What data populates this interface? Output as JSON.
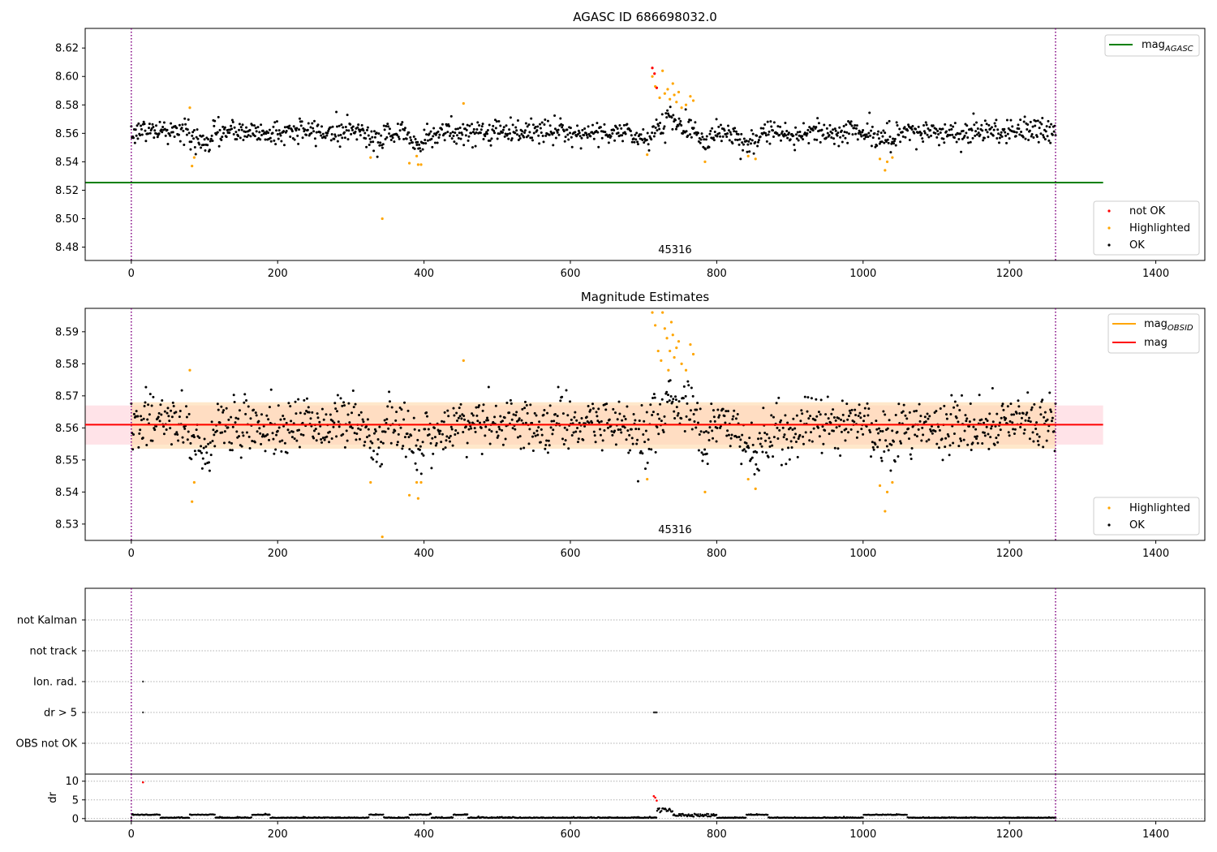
{
  "figure": {
    "title": "AGASC ID 686698032.0",
    "colors": {
      "ok": "#000000",
      "highlighted": "#ffa500",
      "not_ok": "#ff0000",
      "mag_agasc_line": "#008000",
      "mag_obsid_line": "#ffa500",
      "mag_line": "#ff0000",
      "obsid_boundary": "#800080",
      "band_obsid": "#ffd9a8",
      "band_mag": "#ffc0cb"
    }
  },
  "chart_data": [
    {
      "id": "agasc_panel",
      "type": "scatter",
      "title": "AGASC ID 686698032.0",
      "xlim": [
        -63,
        1467
      ],
      "ylim": [
        8.4706,
        8.6338
      ],
      "xticks": [
        0,
        200,
        400,
        600,
        800,
        1000,
        1200,
        1400
      ],
      "yticks": [
        8.48,
        8.5,
        8.52,
        8.54,
        8.56,
        8.58,
        8.6,
        8.62
      ],
      "ytick_labels": [
        "8.48",
        "8.50",
        "8.52",
        "8.54",
        "8.56",
        "8.58",
        "8.60",
        "8.62"
      ],
      "grid": false,
      "obsid_label": {
        "text": "45316",
        "x": 631
      },
      "obsid_boundaries": [
        0,
        1263
      ],
      "reference_lines": [
        {
          "name": "mag$_{AGASC}$",
          "name_main": "mag",
          "name_sub": "AGASC",
          "y": 8.5254,
          "x_range": [
            -63,
            1328
          ]
        }
      ],
      "legend_lines": {
        "position": "top-right",
        "entries": [
          {
            "label": "mag",
            "sub": "AGASC",
            "color_key": "mag_agasc_line"
          }
        ]
      },
      "legend_points": {
        "position": "bottom-right",
        "entries": [
          {
            "label": "not OK",
            "color_key": "not_ok"
          },
          {
            "label": "Highlighted",
            "color_key": "highlighted"
          },
          {
            "label": "OK",
            "color_key": "ok"
          }
        ]
      },
      "series": {
        "ok_count": 1263,
        "ok_x_range": [
          0,
          1263
        ],
        "ok_mean": 8.561,
        "highlighted": [
          {
            "x": 80,
            "y": 8.578
          },
          {
            "x": 83,
            "y": 8.537
          },
          {
            "x": 86,
            "y": 8.543
          },
          {
            "x": 327,
            "y": 8.543
          },
          {
            "x": 343,
            "y": 8.5
          },
          {
            "x": 380,
            "y": 8.539
          },
          {
            "x": 390,
            "y": 8.544
          },
          {
            "x": 392,
            "y": 8.538
          },
          {
            "x": 396,
            "y": 8.538
          },
          {
            "x": 454,
            "y": 8.581
          },
          {
            "x": 705,
            "y": 8.545
          },
          {
            "x": 712,
            "y": 8.6
          },
          {
            "x": 716,
            "y": 8.593
          },
          {
            "x": 722,
            "y": 8.585
          },
          {
            "x": 726,
            "y": 8.604
          },
          {
            "x": 729,
            "y": 8.588
          },
          {
            "x": 733,
            "y": 8.591
          },
          {
            "x": 736,
            "y": 8.584
          },
          {
            "x": 740,
            "y": 8.595
          },
          {
            "x": 742,
            "y": 8.587
          },
          {
            "x": 745,
            "y": 8.582
          },
          {
            "x": 748,
            "y": 8.589
          },
          {
            "x": 752,
            "y": 8.578
          },
          {
            "x": 758,
            "y": 8.58
          },
          {
            "x": 764,
            "y": 8.586
          },
          {
            "x": 768,
            "y": 8.583
          },
          {
            "x": 784,
            "y": 8.54
          },
          {
            "x": 843,
            "y": 8.544
          },
          {
            "x": 853,
            "y": 8.542
          },
          {
            "x": 1023,
            "y": 8.542
          },
          {
            "x": 1030,
            "y": 8.534
          },
          {
            "x": 1033,
            "y": 8.54
          },
          {
            "x": 1040,
            "y": 8.543
          }
        ],
        "not_ok": [
          {
            "x": 712,
            "y": 8.606
          },
          {
            "x": 715,
            "y": 8.602
          },
          {
            "x": 718,
            "y": 8.592
          }
        ]
      }
    },
    {
      "id": "estimates_panel",
      "type": "scatter",
      "title": "Magnitude Estimates",
      "xlim": [
        -63,
        1467
      ],
      "ylim": [
        8.5249,
        8.5973
      ],
      "xticks": [
        0,
        200,
        400,
        600,
        800,
        1000,
        1200,
        1400
      ],
      "yticks": [
        8.53,
        8.54,
        8.55,
        8.56,
        8.57,
        8.58,
        8.59
      ],
      "ytick_labels": [
        "8.53",
        "8.54",
        "8.55",
        "8.56",
        "8.57",
        "8.58",
        "8.59"
      ],
      "grid": false,
      "obsid_label": {
        "text": "45316",
        "x": 631
      },
      "obsid_boundaries": [
        0,
        1263
      ],
      "bands": [
        {
          "name": "mag$_{OBSID}$",
          "y_range": [
            8.5535,
            8.568
          ],
          "x_range": [
            0,
            1263
          ],
          "color_key": "band_obsid"
        },
        {
          "name": "mag",
          "y_range": [
            8.5548,
            8.567
          ],
          "x_range": [
            -63,
            1328
          ],
          "color_key": "band_mag"
        }
      ],
      "reference_lines": [
        {
          "name": "mag$_{OBSID}$",
          "y": 8.561,
          "x_range": [
            0,
            1263
          ],
          "color_key": "mag_obsid_line"
        },
        {
          "name": "mag",
          "y": 8.561,
          "x_range": [
            -63,
            1328
          ],
          "color_key": "mag_line"
        }
      ],
      "legend_lines": {
        "position": "top-right",
        "entries": [
          {
            "label": "mag",
            "sub": "OBSID",
            "color_key": "mag_obsid_line"
          },
          {
            "label": "mag",
            "sub": "",
            "color_key": "mag_line"
          }
        ]
      },
      "legend_points": {
        "position": "bottom-right",
        "entries": [
          {
            "label": "Highlighted",
            "color_key": "highlighted"
          },
          {
            "label": "OK",
            "color_key": "ok"
          }
        ]
      },
      "series": {
        "ok_count": 1263,
        "ok_x_range": [
          0,
          1263
        ],
        "ok_mean": 8.561,
        "highlighted": [
          {
            "x": 80,
            "y": 8.578
          },
          {
            "x": 83,
            "y": 8.537
          },
          {
            "x": 86,
            "y": 8.543
          },
          {
            "x": 327,
            "y": 8.543
          },
          {
            "x": 343,
            "y": 8.526
          },
          {
            "x": 380,
            "y": 8.539
          },
          {
            "x": 390,
            "y": 8.543
          },
          {
            "x": 392,
            "y": 8.538
          },
          {
            "x": 396,
            "y": 8.543
          },
          {
            "x": 454,
            "y": 8.581
          },
          {
            "x": 705,
            "y": 8.544
          },
          {
            "x": 712,
            "y": 8.596
          },
          {
            "x": 716,
            "y": 8.592
          },
          {
            "x": 720,
            "y": 8.584
          },
          {
            "x": 724,
            "y": 8.581
          },
          {
            "x": 726,
            "y": 8.596
          },
          {
            "x": 729,
            "y": 8.591
          },
          {
            "x": 732,
            "y": 8.588
          },
          {
            "x": 734,
            "y": 8.578
          },
          {
            "x": 736,
            "y": 8.584
          },
          {
            "x": 738,
            "y": 8.593
          },
          {
            "x": 740,
            "y": 8.589
          },
          {
            "x": 742,
            "y": 8.582
          },
          {
            "x": 745,
            "y": 8.585
          },
          {
            "x": 748,
            "y": 8.587
          },
          {
            "x": 752,
            "y": 8.58
          },
          {
            "x": 758,
            "y": 8.578
          },
          {
            "x": 764,
            "y": 8.586
          },
          {
            "x": 768,
            "y": 8.583
          },
          {
            "x": 784,
            "y": 8.54
          },
          {
            "x": 843,
            "y": 8.544
          },
          {
            "x": 853,
            "y": 8.541
          },
          {
            "x": 1023,
            "y": 8.542
          },
          {
            "x": 1030,
            "y": 8.534
          },
          {
            "x": 1033,
            "y": 8.54
          },
          {
            "x": 1040,
            "y": 8.543
          }
        ]
      }
    },
    {
      "id": "flags_panel",
      "type": "scatter",
      "xlim": [
        -63,
        1467
      ],
      "categories": [
        "OBS not OK",
        "dr > 5",
        "Ion. rad.",
        "not track",
        "not Kalman"
      ],
      "grid": "horizontal-dotted",
      "obsid_boundaries": [
        0,
        1263
      ],
      "series": {
        "ion_rad": [
          {
            "x": 16
          }
        ],
        "dr_gt_5": [
          {
            "x": 16
          },
          {
            "x": 714
          },
          {
            "x": 715
          },
          {
            "x": 716
          },
          {
            "x": 717
          },
          {
            "x": 718
          }
        ]
      }
    },
    {
      "id": "dr_panel",
      "type": "scatter",
      "xlim": [
        -63,
        1467
      ],
      "ylim": [
        -0.7,
        11.9
      ],
      "yticks": [
        0,
        5,
        10
      ],
      "ytick_labels": [
        "0",
        "5",
        "10"
      ],
      "xticks": [
        0,
        200,
        400,
        600,
        800,
        1000,
        1200,
        1400
      ],
      "ylabel": "dr",
      "grid": "horizontal-dotted",
      "obsid_boundaries": [
        0,
        1263
      ],
      "series": {
        "ok_count": 1263,
        "not_ok": [
          {
            "x": 16,
            "y": 9.7
          },
          {
            "x": 714,
            "y": 6.0
          },
          {
            "x": 716,
            "y": 5.6
          },
          {
            "x": 718,
            "y": 4.8
          }
        ]
      }
    }
  ]
}
